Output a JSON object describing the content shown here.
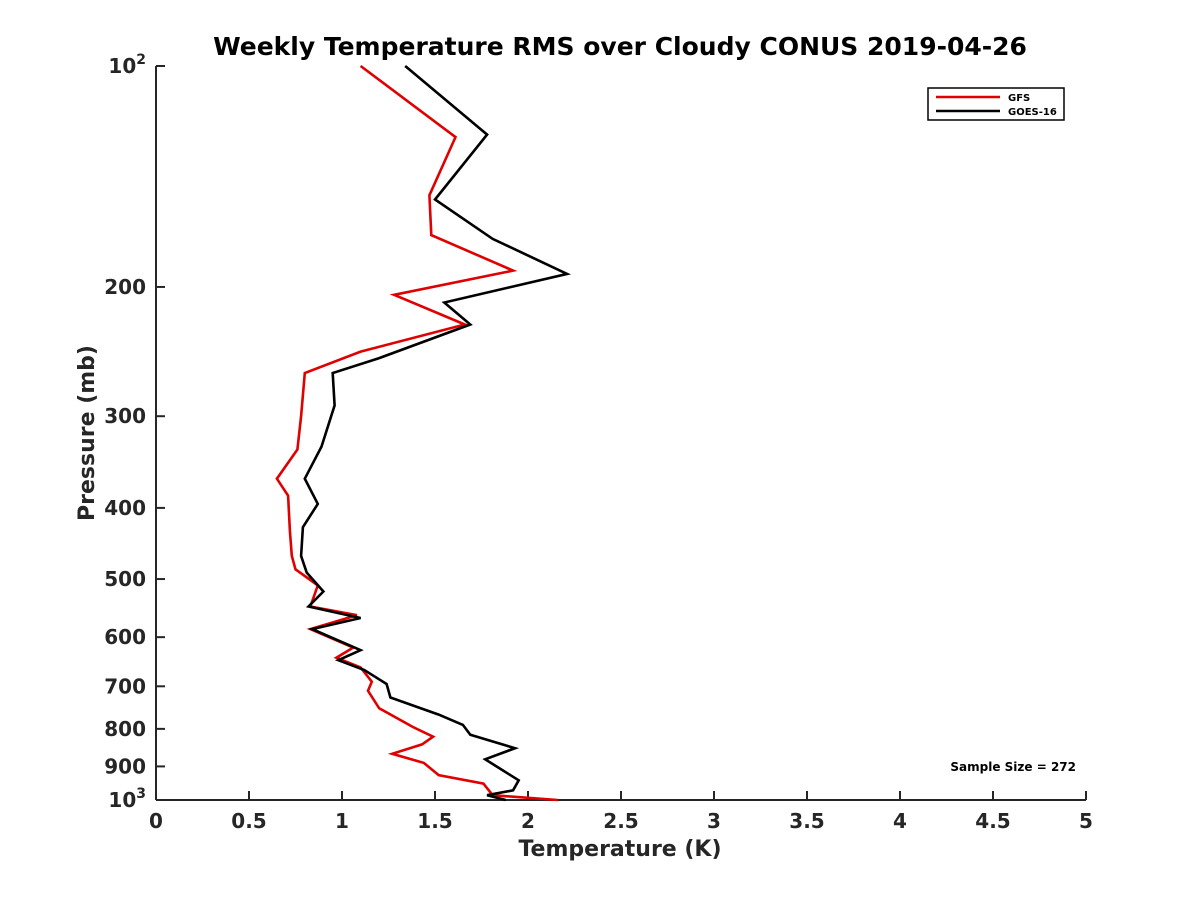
{
  "chart_data": {
    "type": "line",
    "title": "Weekly Temperature RMS over Cloudy CONUS 2019-04-26",
    "xlabel": "Temperature (K)",
    "ylabel": "Pressure (mb)",
    "xlim": [
      0,
      5
    ],
    "ylim": [
      100,
      1000
    ],
    "yscale": "log",
    "y_reversed": true,
    "grid": false,
    "x_ticks": [
      0,
      0.5,
      1,
      1.5,
      2,
      2.5,
      3,
      3.5,
      4,
      4.5,
      5
    ],
    "x_tick_labels": [
      "0",
      "0.5",
      "1",
      "1.5",
      "2",
      "2.5",
      "3",
      "3.5",
      "4",
      "4.5",
      "5"
    ],
    "y_ticks": [
      {
        "value": 100,
        "base": "10",
        "exp": "2"
      },
      {
        "value": 200,
        "label": "200"
      },
      {
        "value": 300,
        "label": "300"
      },
      {
        "value": 400,
        "label": "400"
      },
      {
        "value": 500,
        "label": "500"
      },
      {
        "value": 600,
        "label": "600"
      },
      {
        "value": 700,
        "label": "700"
      },
      {
        "value": 800,
        "label": "800"
      },
      {
        "value": 900,
        "label": "900"
      },
      {
        "value": 1000,
        "base": "10",
        "exp": "3"
      }
    ],
    "legend_position": "top-right",
    "annotation": "Sample Size = 272",
    "series": [
      {
        "name": "GFS",
        "color": "#e00000",
        "points": [
          [
            1.1,
            100
          ],
          [
            1.61,
            125
          ],
          [
            1.47,
            150
          ],
          [
            1.48,
            170
          ],
          [
            1.92,
            190
          ],
          [
            1.28,
            205
          ],
          [
            1.66,
            225
          ],
          [
            1.1,
            245
          ],
          [
            0.8,
            262
          ],
          [
            0.78,
            300
          ],
          [
            0.76,
            333
          ],
          [
            0.65,
            365
          ],
          [
            0.71,
            385
          ],
          [
            0.72,
            430
          ],
          [
            0.73,
            465
          ],
          [
            0.75,
            485
          ],
          [
            0.87,
            510
          ],
          [
            0.83,
            545
          ],
          [
            1.08,
            560
          ],
          [
            0.83,
            585
          ],
          [
            1.06,
            620
          ],
          [
            0.97,
            640
          ],
          [
            1.1,
            660
          ],
          [
            1.16,
            690
          ],
          [
            1.14,
            710
          ],
          [
            1.2,
            750
          ],
          [
            1.38,
            795
          ],
          [
            1.49,
            820
          ],
          [
            1.43,
            840
          ],
          [
            1.27,
            865
          ],
          [
            1.44,
            890
          ],
          [
            1.52,
            925
          ],
          [
            1.76,
            950
          ],
          [
            1.81,
            985
          ],
          [
            2.16,
            1000
          ]
        ]
      },
      {
        "name": "GOES-16",
        "color": "#000000",
        "points": [
          [
            1.34,
            100
          ],
          [
            1.78,
            124
          ],
          [
            1.5,
            152
          ],
          [
            1.81,
            172
          ],
          [
            2.21,
            192
          ],
          [
            1.55,
            210
          ],
          [
            1.69,
            225
          ],
          [
            1.2,
            250
          ],
          [
            0.95,
            262
          ],
          [
            0.96,
            290
          ],
          [
            0.89,
            330
          ],
          [
            0.8,
            365
          ],
          [
            0.87,
            395
          ],
          [
            0.79,
            425
          ],
          [
            0.78,
            465
          ],
          [
            0.81,
            490
          ],
          [
            0.9,
            520
          ],
          [
            0.82,
            545
          ],
          [
            1.1,
            565
          ],
          [
            0.84,
            585
          ],
          [
            1.1,
            625
          ],
          [
            0.98,
            645
          ],
          [
            1.12,
            665
          ],
          [
            1.24,
            695
          ],
          [
            1.26,
            725
          ],
          [
            1.52,
            765
          ],
          [
            1.65,
            790
          ],
          [
            1.69,
            815
          ],
          [
            1.93,
            850
          ],
          [
            1.77,
            880
          ],
          [
            1.86,
            910
          ],
          [
            1.95,
            940
          ],
          [
            1.92,
            970
          ],
          [
            1.78,
            985
          ],
          [
            1.88,
            1000
          ]
        ]
      }
    ]
  }
}
